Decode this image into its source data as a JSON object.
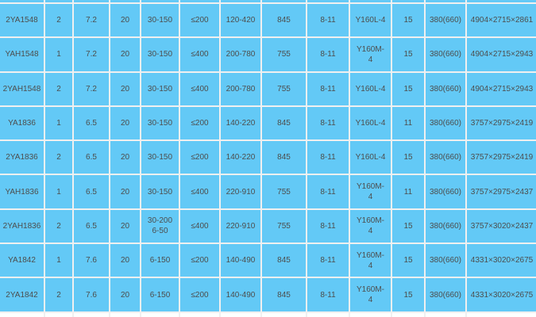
{
  "page": {
    "background": "#ffffff"
  },
  "table": {
    "cell_background": "#63c9f6",
    "grid_line_color": "#f0f0f0",
    "text_color": "#4d4d4d",
    "rows": [
      [
        "2YA1548",
        "2",
        "7.2",
        "20",
        "30-150",
        "≤200",
        "120-420",
        "845",
        "8-11",
        "Y160L-4",
        "15",
        "380(660)",
        "4904×2715×2861"
      ],
      [
        "YAH1548",
        "1",
        "7.2",
        "20",
        "30-150",
        "≤400",
        "200-780",
        "755",
        "8-11",
        "Y160M-4",
        "15",
        "380(660)",
        "4904×2715×2943"
      ],
      [
        "2YAH1548",
        "2",
        "7.2",
        "20",
        "30-150",
        "≤400",
        "200-780",
        "755",
        "8-11",
        "Y160L-4",
        "15",
        "380(660)",
        "4904×2715×2943"
      ],
      [
        "YA1836",
        "1",
        "6.5",
        "20",
        "30-150",
        "≤200",
        "140-220",
        "845",
        "8-11",
        "Y160L-4",
        "11",
        "380(660)",
        "3757×2975×2419"
      ],
      [
        "2YA1836",
        "2",
        "6.5",
        "20",
        "30-150",
        "≤200",
        "140-220",
        "845",
        "8-11",
        "Y160L-4",
        "15",
        "380(660)",
        "3757×2975×2419"
      ],
      [
        "YAH1836",
        "1",
        "6.5",
        "20",
        "30-150",
        "≤400",
        "220-910",
        "755",
        "8-11",
        "Y160M-4",
        "11",
        "380(660)",
        "3757×2975×2437"
      ],
      [
        "2YAH1836",
        "2",
        "6.5",
        "20",
        "30-200 6-50",
        "≤400",
        "220-910",
        "755",
        "8-11",
        "Y160M-4",
        "15",
        "380(660)",
        "3757×3020×2437"
      ],
      [
        "YA1842",
        "1",
        "7.6",
        "20",
        "6-150",
        "≤200",
        "140-490",
        "845",
        "8-11",
        "Y160M-4",
        "15",
        "380(660)",
        "4331×3020×2675"
      ],
      [
        "2YA1842",
        "2",
        "7.6",
        "20",
        "6-150",
        "≤200",
        "140-490",
        "845",
        "8-11",
        "Y160M-4",
        "15",
        "380(660)",
        "4331×3020×2675"
      ]
    ]
  }
}
